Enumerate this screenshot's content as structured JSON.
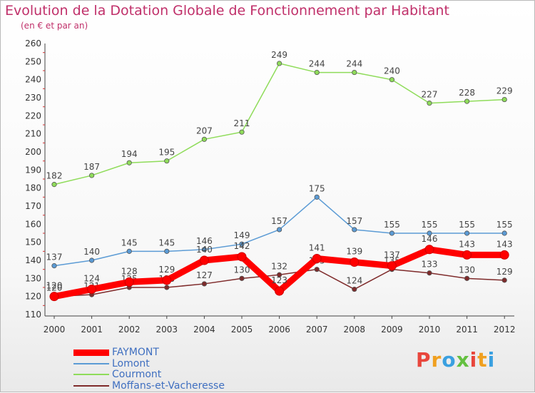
{
  "header": {
    "title": "Evolution de la Dotation Globale de Fonctionnement par Habitant",
    "subtitle": "(en € et par an)"
  },
  "logo": {
    "text": "Proxiti",
    "colors": [
      "#e8463c",
      "#f0a020",
      "#3aa0e0",
      "#64c040"
    ]
  },
  "chart_data": {
    "type": "line",
    "x": [
      "2000",
      "2001",
      "2002",
      "2003",
      "2004",
      "2005",
      "2006",
      "2007",
      "2008",
      "2009",
      "2010",
      "2011",
      "2012"
    ],
    "ylim": [
      110,
      260
    ],
    "yticks": [
      110,
      120,
      130,
      140,
      150,
      160,
      170,
      180,
      190,
      200,
      210,
      220,
      230,
      240,
      250,
      260
    ],
    "grid": false,
    "legend_position": "bottom-left",
    "series": [
      {
        "name": "FAYMONT",
        "color": "#ff0000",
        "values": [
          120,
          124,
          128,
          129,
          140,
          142,
          123,
          141,
          139,
          137,
          146,
          143,
          143
        ]
      },
      {
        "name": "Lomont",
        "color": "#5b9bd5",
        "values": [
          137,
          140,
          145,
          145,
          146,
          149,
          157,
          175,
          157,
          155,
          155,
          155,
          155
        ]
      },
      {
        "name": "Courmont",
        "color": "#8fdc5a",
        "values": [
          182,
          187,
          194,
          195,
          207,
          211,
          249,
          244,
          244,
          240,
          227,
          228,
          229
        ]
      },
      {
        "name": "Moffans-et-Vacheresse",
        "color": "#7f2b2b",
        "values": [
          120,
          121,
          125,
          125,
          127,
          130,
          132,
          135,
          124,
          135,
          133,
          130,
          129
        ]
      }
    ]
  }
}
